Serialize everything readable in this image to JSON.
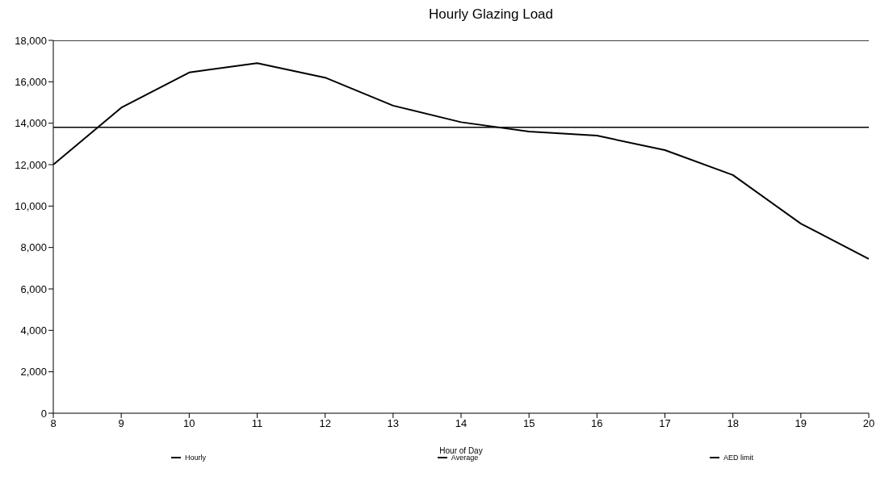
{
  "chart_data": {
    "type": "line",
    "title": "Hourly Glazing Load",
    "xlabel": "Hour of Day",
    "x": [
      8,
      9,
      10,
      11,
      12,
      13,
      14,
      15,
      16,
      17,
      18,
      19,
      20
    ],
    "series": [
      {
        "name": "Hourly",
        "color": "#000000",
        "values": [
          12000,
          14750,
          16450,
          16900,
          16200,
          14850,
          14050,
          13600,
          13400,
          12700,
          11500,
          9150,
          7450
        ]
      },
      {
        "name": "Average",
        "color": "#000000",
        "values": [
          13800,
          13800,
          13800,
          13800,
          13800,
          13800,
          13800,
          13800,
          13800,
          13800,
          13800,
          13800,
          13800
        ]
      },
      {
        "name": "AED limit",
        "color": "#000000",
        "values": [
          18000,
          18000,
          18000,
          18000,
          18000,
          18000,
          18000,
          18000,
          18000,
          18000,
          18000,
          18000,
          18000
        ]
      }
    ],
    "xlim": [
      8,
      20
    ],
    "xticks": [
      8,
      9,
      10,
      11,
      12,
      13,
      14,
      15,
      16,
      17,
      18,
      19,
      20
    ],
    "ylim": [
      0,
      18000
    ],
    "yticks": [
      0,
      {
        "value": 2000,
        "label": "2,000"
      },
      {
        "value": 4000,
        "label": "4,000"
      },
      {
        "value": 6000,
        "label": "6,000"
      },
      {
        "value": 8000,
        "label": "8,000"
      },
      {
        "value": 10000,
        "label": "10,000"
      },
      {
        "value": 12000,
        "label": "12,000"
      },
      {
        "value": 14000,
        "label": "14,000"
      },
      {
        "value": 16000,
        "label": "16,000"
      },
      {
        "value": 18000,
        "label": "18,000"
      }
    ],
    "grid": false,
    "legend": "bottom",
    "marker": "none",
    "line_style": "solid"
  }
}
